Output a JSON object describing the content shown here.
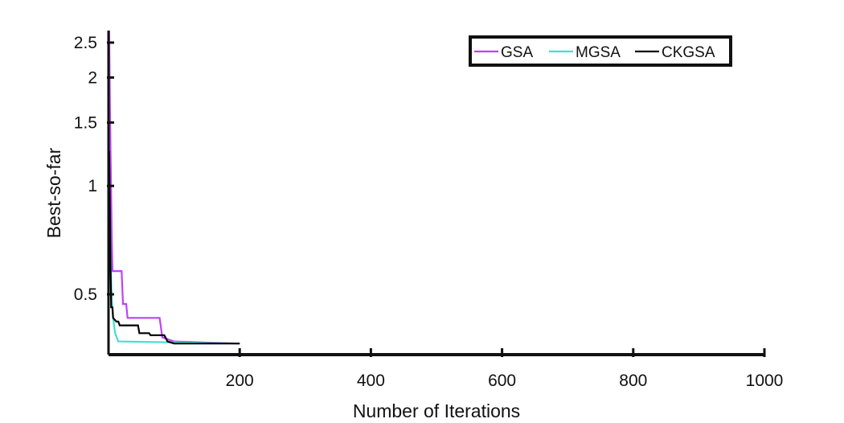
{
  "chart_data": {
    "type": "line",
    "title": "",
    "xlabel": "Number of Iterations",
    "ylabel": "Best-so-far",
    "xlim": [
      0,
      1000
    ],
    "ylim": [
      0.34,
      2.7
    ],
    "y_scale": "log",
    "x_ticks": [
      200,
      400,
      600,
      800,
      1000
    ],
    "y_ticks": [
      0.5,
      1,
      1.5,
      2,
      2.5
    ],
    "grid": false,
    "legend": {
      "position": "top-right",
      "orientation": "horizontal"
    },
    "series": [
      {
        "name": "GSA",
        "color": "#c040ff",
        "points": [
          [
            1,
            2.7
          ],
          [
            1.5,
            2.2
          ],
          [
            2,
            1.8
          ],
          [
            3,
            1.3
          ],
          [
            4,
            0.95
          ],
          [
            5,
            0.7
          ],
          [
            6,
            0.58
          ],
          [
            20,
            0.58
          ],
          [
            22,
            0.47
          ],
          [
            27,
            0.47
          ],
          [
            29,
            0.43
          ],
          [
            78,
            0.43
          ],
          [
            82,
            0.38
          ],
          [
            100,
            0.37
          ],
          [
            200,
            0.365
          ]
        ]
      },
      {
        "name": "MGSA",
        "color": "#40e0d0",
        "points": [
          [
            1,
            1.15
          ],
          [
            2,
            0.85
          ],
          [
            3,
            0.65
          ],
          [
            4,
            0.55
          ],
          [
            5,
            0.48
          ],
          [
            7,
            0.43
          ],
          [
            10,
            0.39
          ],
          [
            15,
            0.37
          ],
          [
            200,
            0.365
          ]
        ]
      },
      {
        "name": "CKGSA",
        "color": "#000000",
        "points": [
          [
            1,
            1.25
          ],
          [
            2,
            0.9
          ],
          [
            3,
            0.62
          ],
          [
            4,
            0.46
          ],
          [
            6,
            0.46
          ],
          [
            7,
            0.43
          ],
          [
            12,
            0.42
          ],
          [
            15,
            0.42
          ],
          [
            17,
            0.41
          ],
          [
            45,
            0.41
          ],
          [
            47,
            0.39
          ],
          [
            62,
            0.39
          ],
          [
            64,
            0.385
          ],
          [
            85,
            0.385
          ],
          [
            90,
            0.37
          ],
          [
            100,
            0.365
          ],
          [
            200,
            0.365
          ]
        ]
      }
    ]
  }
}
